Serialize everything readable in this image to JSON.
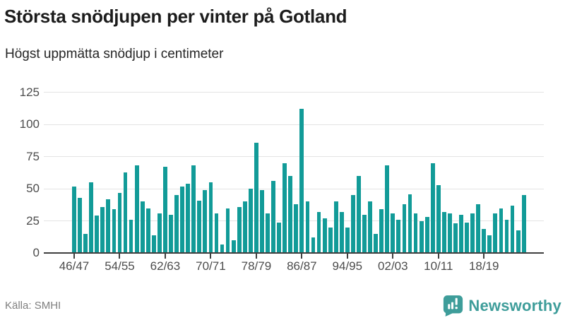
{
  "header": {
    "title": "Största snödjupen per vinter på Gotland",
    "subtitle": "Högst uppmätta snödjup i centimeter"
  },
  "footer": {
    "source": "Källa: SMHI",
    "brand": "Newsworthy"
  },
  "colors": {
    "bar": "#129B98",
    "grid": "#E3E3E3",
    "axis": "#3F3F3F",
    "title_text": "#1C1C1C",
    "label_text": "#4C4C4C",
    "source_text": "#7F7F7F",
    "brand_teal": "#3E9D9A"
  },
  "chart_data": {
    "type": "bar",
    "title": "Största snödjupen per vinter på Gotland",
    "subtitle": "Högst uppmätta snödjup i centimeter",
    "unit": "centimeter",
    "source": "SMHI",
    "grid": true,
    "legend": false,
    "ylim": [
      0,
      125
    ],
    "yticks": [
      0,
      25,
      50,
      75,
      100,
      125
    ],
    "x_tick_every": 8,
    "x_tick_labels": [
      "46/47",
      "54/55",
      "62/63",
      "70/71",
      "78/79",
      "86/87",
      "94/95",
      "02/03",
      "10/11",
      "18/19"
    ],
    "categories": [
      "46/47",
      "47/48",
      "48/49",
      "49/50",
      "50/51",
      "51/52",
      "52/53",
      "53/54",
      "54/55",
      "55/56",
      "56/57",
      "57/58",
      "58/59",
      "59/60",
      "60/61",
      "61/62",
      "62/63",
      "63/64",
      "64/65",
      "65/66",
      "66/67",
      "67/68",
      "68/69",
      "69/70",
      "70/71",
      "71/72",
      "72/73",
      "73/74",
      "74/75",
      "75/76",
      "76/77",
      "77/78",
      "78/79",
      "79/80",
      "80/81",
      "81/82",
      "82/83",
      "83/84",
      "84/85",
      "85/86",
      "86/87",
      "87/88",
      "88/89",
      "89/90",
      "90/91",
      "91/92",
      "92/93",
      "93/94",
      "94/95",
      "95/96",
      "96/97",
      "97/98",
      "98/99",
      "99/00",
      "00/01",
      "01/02",
      "02/03",
      "03/04",
      "04/05",
      "05/06",
      "06/07",
      "07/08",
      "08/09",
      "09/10",
      "10/11",
      "11/12",
      "12/13",
      "13/14",
      "14/15",
      "15/16",
      "16/17",
      "17/18",
      "18/19",
      "19/20",
      "20/21",
      "21/22",
      "22/23",
      "23/24",
      "24/25",
      "25/26"
    ],
    "values": [
      52,
      43,
      15,
      55,
      29,
      36,
      42,
      34,
      47,
      63,
      26,
      68,
      40,
      35,
      14,
      31,
      67,
      30,
      45,
      52,
      54,
      68,
      41,
      49,
      55,
      31,
      7,
      35,
      10,
      36,
      40,
      50,
      86,
      49,
      31,
      56,
      24,
      70,
      60,
      38,
      112,
      40,
      12,
      32,
      27,
      20,
      40,
      32,
      20,
      45,
      60,
      30,
      40,
      15,
      34,
      68,
      31,
      26,
      38,
      46,
      31,
      25,
      28,
      70,
      53,
      32,
      31,
      23,
      30,
      24,
      31,
      38,
      19,
      14,
      31,
      35,
      26,
      37,
      18,
      45
    ]
  }
}
